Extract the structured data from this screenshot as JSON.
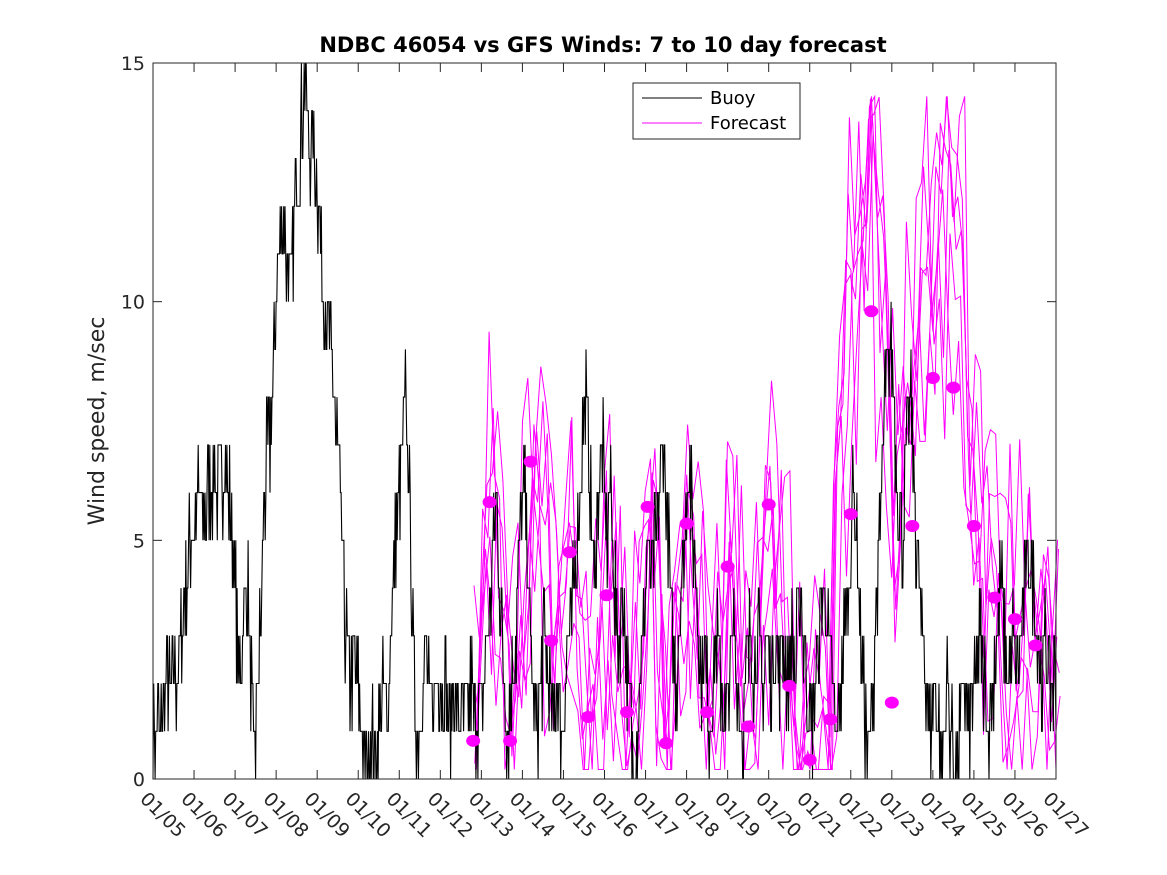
{
  "chart_data": {
    "type": "line",
    "title": "NDBC 46054 vs GFS Winds: 7 to 10 day forecast",
    "xlabel": "",
    "ylabel": "Wind speed, m/sec",
    "ylim": [
      0,
      15
    ],
    "xlim": [
      0,
      22
    ],
    "x_tick_labels": [
      "01/05",
      "01/06",
      "01/07",
      "01/08",
      "01/09",
      "01/10",
      "01/11",
      "01/12",
      "01/13",
      "01/14",
      "01/15",
      "01/16",
      "01/17",
      "01/18",
      "01/19",
      "01/20",
      "01/21",
      "01/22",
      "01/23",
      "01/24",
      "01/25",
      "01/26",
      "01/27"
    ],
    "y_ticks": [
      0,
      5,
      10,
      15
    ],
    "legend": {
      "position": "top-right",
      "entries": [
        "Buoy",
        "Forecast"
      ]
    },
    "colors": {
      "buoy": "#000000",
      "forecast": "#ff00ff",
      "axis": "#262626"
    },
    "buoy_anchor_points": [
      [
        0.0,
        1.0
      ],
      [
        0.2,
        1.0
      ],
      [
        0.35,
        2.0
      ],
      [
        0.55,
        2.0
      ],
      [
        0.7,
        3.0
      ],
      [
        0.8,
        4.0
      ],
      [
        0.9,
        5.0
      ],
      [
        1.0,
        5.0
      ],
      [
        1.1,
        6.0
      ],
      [
        1.2,
        5.5
      ],
      [
        1.35,
        6.0
      ],
      [
        1.5,
        6.5
      ],
      [
        1.6,
        6.0
      ],
      [
        1.75,
        6.5
      ],
      [
        1.85,
        6.0
      ],
      [
        1.95,
        5.0
      ],
      [
        2.05,
        3.0
      ],
      [
        2.1,
        2.0
      ],
      [
        2.2,
        3.5
      ],
      [
        2.3,
        4.0
      ],
      [
        2.4,
        2.0
      ],
      [
        2.45,
        0.0
      ],
      [
        2.55,
        2.0
      ],
      [
        2.65,
        4.0
      ],
      [
        2.75,
        6.5
      ],
      [
        2.85,
        7.0
      ],
      [
        2.95,
        9.0
      ],
      [
        3.05,
        11.0
      ],
      [
        3.15,
        12.0
      ],
      [
        3.25,
        11.0
      ],
      [
        3.35,
        10.0
      ],
      [
        3.45,
        12.0
      ],
      [
        3.55,
        13.0
      ],
      [
        3.65,
        14.0
      ],
      [
        3.72,
        15.0
      ],
      [
        3.8,
        13.0
      ],
      [
        3.9,
        13.5
      ],
      [
        4.0,
        12.5
      ],
      [
        4.1,
        11.0
      ],
      [
        4.2,
        10.0
      ],
      [
        4.3,
        9.0
      ],
      [
        4.4,
        8.0
      ],
      [
        4.5,
        7.0
      ],
      [
        4.6,
        5.0
      ],
      [
        4.7,
        3.0
      ],
      [
        4.8,
        2.0
      ],
      [
        4.9,
        2.5
      ],
      [
        5.0,
        2.0
      ],
      [
        5.1,
        1.0
      ],
      [
        5.2,
        0.0
      ],
      [
        5.3,
        1.0
      ],
      [
        5.4,
        0.5
      ],
      [
        5.5,
        1.0
      ],
      [
        5.6,
        2.0
      ],
      [
        5.7,
        1.0
      ],
      [
        5.8,
        3.0
      ],
      [
        5.9,
        5.0
      ],
      [
        6.0,
        6.0
      ],
      [
        6.1,
        7.0
      ],
      [
        6.15,
        8.0
      ],
      [
        6.25,
        6.0
      ],
      [
        6.35,
        2.0
      ],
      [
        6.45,
        1.0
      ],
      [
        6.55,
        2.0
      ],
      [
        6.65,
        2.5
      ],
      [
        6.75,
        1.5
      ],
      [
        6.85,
        2.0
      ],
      [
        6.95,
        2.5
      ],
      [
        7.05,
        1.5
      ],
      [
        7.15,
        2.0
      ],
      [
        7.25,
        1.0
      ],
      [
        7.35,
        2.0
      ],
      [
        7.45,
        1.0
      ],
      [
        7.55,
        1.5
      ],
      [
        7.65,
        1.0
      ],
      [
        7.75,
        2.0
      ],
      [
        7.85,
        1.0
      ],
      [
        7.95,
        1.5
      ],
      [
        8.05,
        2.0
      ],
      [
        8.15,
        3.0
      ],
      [
        8.25,
        4.0
      ],
      [
        8.35,
        6.0
      ],
      [
        8.45,
        4.0
      ],
      [
        8.55,
        2.0
      ],
      [
        8.65,
        1.0
      ],
      [
        8.75,
        2.0
      ],
      [
        8.85,
        3.0
      ],
      [
        8.95,
        5.0
      ],
      [
        9.05,
        6.0
      ],
      [
        9.15,
        4.0
      ],
      [
        9.25,
        2.0
      ],
      [
        9.35,
        1.0
      ],
      [
        9.45,
        2.0
      ],
      [
        9.55,
        3.0
      ],
      [
        9.65,
        2.0
      ],
      [
        9.75,
        1.0
      ],
      [
        9.85,
        2.0
      ],
      [
        9.95,
        1.0
      ],
      [
        10.05,
        2.0
      ],
      [
        10.15,
        3.0
      ],
      [
        10.25,
        4.0
      ],
      [
        10.35,
        5.0
      ],
      [
        10.45,
        7.0
      ],
      [
        10.55,
        8.0
      ],
      [
        10.65,
        6.0
      ],
      [
        10.75,
        4.0
      ],
      [
        10.85,
        6.0
      ],
      [
        10.95,
        7.0
      ],
      [
        11.05,
        5.0
      ],
      [
        11.15,
        6.0
      ],
      [
        11.25,
        4.0
      ],
      [
        11.35,
        3.0
      ],
      [
        11.45,
        4.0
      ],
      [
        11.55,
        2.0
      ],
      [
        11.65,
        1.0
      ],
      [
        11.75,
        0.0
      ],
      [
        11.85,
        2.0
      ],
      [
        11.95,
        3.0
      ],
      [
        12.05,
        5.0
      ],
      [
        12.15,
        4.0
      ],
      [
        12.25,
        5.0
      ],
      [
        12.35,
        6.0
      ],
      [
        12.45,
        7.0
      ],
      [
        12.55,
        5.0
      ],
      [
        12.65,
        3.0
      ],
      [
        12.75,
        2.0
      ],
      [
        12.85,
        4.0
      ],
      [
        12.95,
        5.0
      ],
      [
        13.05,
        7.0
      ],
      [
        13.15,
        5.0
      ],
      [
        13.25,
        4.0
      ],
      [
        13.35,
        2.0
      ],
      [
        13.45,
        3.0
      ],
      [
        13.55,
        1.0
      ],
      [
        13.65,
        2.0
      ],
      [
        13.75,
        3.0
      ],
      [
        13.85,
        2.0
      ],
      [
        13.95,
        1.0
      ],
      [
        14.05,
        2.0
      ],
      [
        14.15,
        3.0
      ],
      [
        14.25,
        2.0
      ],
      [
        14.35,
        1.0
      ],
      [
        14.45,
        2.0
      ],
      [
        14.55,
        3.0
      ],
      [
        14.65,
        2.0
      ],
      [
        14.75,
        3.0
      ],
      [
        14.85,
        2.0
      ],
      [
        14.95,
        3.0
      ],
      [
        15.05,
        2.0
      ],
      [
        15.15,
        3.0
      ],
      [
        15.25,
        2.0
      ],
      [
        15.35,
        3.0
      ],
      [
        15.45,
        2.0
      ],
      [
        15.55,
        3.0
      ],
      [
        15.65,
        2.0
      ],
      [
        15.75,
        4.0
      ],
      [
        15.85,
        3.0
      ],
      [
        15.95,
        2.0
      ],
      [
        16.05,
        1.0
      ],
      [
        16.15,
        2.0
      ],
      [
        16.25,
        3.0
      ],
      [
        16.35,
        4.0
      ],
      [
        16.45,
        3.0
      ],
      [
        16.55,
        2.0
      ],
      [
        16.65,
        1.0
      ],
      [
        16.75,
        2.0
      ],
      [
        16.85,
        3.0
      ],
      [
        16.95,
        4.0
      ],
      [
        17.05,
        6.0
      ],
      [
        17.15,
        5.0
      ],
      [
        17.25,
        3.0
      ],
      [
        17.35,
        1.0
      ],
      [
        17.45,
        0.5
      ],
      [
        17.55,
        2.0
      ],
      [
        17.65,
        4.0
      ],
      [
        17.75,
        6.0
      ],
      [
        17.85,
        8.0
      ],
      [
        17.95,
        9.0
      ],
      [
        18.05,
        8.0
      ],
      [
        18.15,
        6.0
      ],
      [
        18.25,
        5.0
      ],
      [
        18.35,
        7.0
      ],
      [
        18.45,
        8.0
      ],
      [
        18.55,
        6.0
      ],
      [
        18.65,
        4.0
      ],
      [
        18.75,
        3.0
      ],
      [
        18.85,
        2.0
      ],
      [
        18.95,
        1.0
      ],
      [
        19.05,
        2.0
      ],
      [
        19.15,
        1.0
      ],
      [
        19.25,
        0.5
      ],
      [
        19.35,
        2.0
      ],
      [
        19.45,
        1.0
      ],
      [
        19.55,
        0.0
      ],
      [
        19.65,
        1.0
      ],
      [
        19.75,
        2.0
      ],
      [
        19.85,
        1.0
      ],
      [
        19.95,
        1.5
      ],
      [
        20.05,
        2.0
      ],
      [
        20.15,
        3.0
      ],
      [
        20.25,
        2.0
      ],
      [
        20.35,
        1.0
      ],
      [
        20.45,
        2.0
      ],
      [
        20.55,
        3.0
      ],
      [
        20.65,
        4.0
      ],
      [
        20.75,
        3.0
      ],
      [
        20.85,
        2.0
      ],
      [
        20.95,
        3.0
      ],
      [
        21.05,
        2.0
      ],
      [
        21.15,
        3.0
      ],
      [
        21.25,
        4.0
      ],
      [
        21.35,
        5.0
      ],
      [
        21.45,
        4.0
      ],
      [
        21.55,
        3.0
      ],
      [
        21.65,
        2.0
      ],
      [
        21.75,
        3.0
      ],
      [
        21.85,
        2.0
      ],
      [
        22.0,
        2.0
      ]
    ],
    "forecast_points": [
      [
        7.8,
        0.8
      ],
      [
        8.2,
        5.8
      ],
      [
        8.7,
        0.8
      ],
      [
        9.2,
        6.65
      ],
      [
        9.7,
        2.9
      ],
      [
        10.15,
        4.75
      ],
      [
        10.6,
        1.3
      ],
      [
        11.05,
        3.85
      ],
      [
        11.55,
        1.4
      ],
      [
        12.05,
        5.7
      ],
      [
        12.5,
        0.75
      ],
      [
        13.0,
        5.35
      ],
      [
        13.5,
        1.4
      ],
      [
        14.0,
        4.45
      ],
      [
        14.5,
        1.1
      ],
      [
        15.0,
        5.75
      ],
      [
        15.5,
        1.95
      ],
      [
        16.0,
        0.4
      ],
      [
        16.5,
        1.25
      ],
      [
        17.0,
        5.55
      ],
      [
        17.5,
        9.8
      ],
      [
        18.0,
        1.6
      ],
      [
        18.5,
        5.3
      ],
      [
        19.0,
        8.4
      ],
      [
        19.5,
        8.2
      ],
      [
        20.0,
        5.3
      ],
      [
        20.5,
        3.8
      ],
      [
        21.0,
        3.35
      ],
      [
        21.5,
        2.8
      ]
    ],
    "forecast_member_count": 6
  }
}
